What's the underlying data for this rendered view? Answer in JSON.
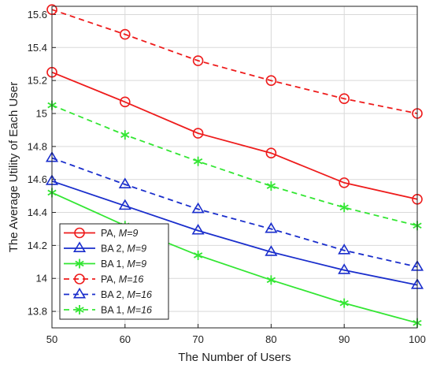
{
  "chart_data": {
    "type": "line",
    "title": "",
    "xlabel": "The Number of Users",
    "ylabel": "The Average Utility of Each User",
    "xlim": [
      50,
      100
    ],
    "ylim": [
      13.7,
      15.65
    ],
    "x": [
      50,
      60,
      70,
      80,
      90,
      100
    ],
    "xticks": [
      "50",
      "60",
      "70",
      "80",
      "90",
      "100"
    ],
    "yticks": [
      13.8,
      14,
      14.2,
      14.4,
      14.6,
      14.8,
      15,
      15.2,
      15.4,
      15.6
    ],
    "ytick_labels": [
      "13.8",
      "14",
      "14.2",
      "14.4",
      "14.6",
      "14.8",
      "15",
      "15.2",
      "15.4",
      "15.6"
    ],
    "grid": true,
    "legend_position": "bottom-left",
    "series": [
      {
        "name_main": "PA, ",
        "name_param": "M=9",
        "color": "#ee1c1c",
        "dash": "solid",
        "marker": "circle",
        "values": [
          15.25,
          15.07,
          14.88,
          14.76,
          14.58,
          14.48
        ]
      },
      {
        "name_main": "BA 2, ",
        "name_param": "M=9",
        "color": "#1a2ecc",
        "dash": "solid",
        "marker": "triangle",
        "values": [
          14.59,
          14.44,
          14.29,
          14.16,
          14.05,
          13.96
        ]
      },
      {
        "name_main": "BA 1, ",
        "name_param": "M=9",
        "color": "#33e633",
        "dash": "solid",
        "marker": "asterisk",
        "values": [
          14.52,
          14.32,
          14.14,
          13.99,
          13.85,
          13.73
        ]
      },
      {
        "name_main": "PA, ",
        "name_param": "M=16",
        "color": "#ee1c1c",
        "dash": "dashed",
        "marker": "circle",
        "values": [
          15.63,
          15.48,
          15.32,
          15.2,
          15.09,
          15.0
        ]
      },
      {
        "name_main": "BA 2,  ",
        "name_param": "M=16",
        "color": "#1a2ecc",
        "dash": "dashed",
        "marker": "triangle",
        "values": [
          14.73,
          14.57,
          14.42,
          14.3,
          14.17,
          14.07
        ]
      },
      {
        "name_main": "BA 1,  ",
        "name_param": "M=16",
        "color": "#33e633",
        "dash": "dashed",
        "marker": "asterisk",
        "values": [
          15.05,
          14.87,
          14.71,
          14.56,
          14.43,
          14.32
        ]
      }
    ]
  }
}
